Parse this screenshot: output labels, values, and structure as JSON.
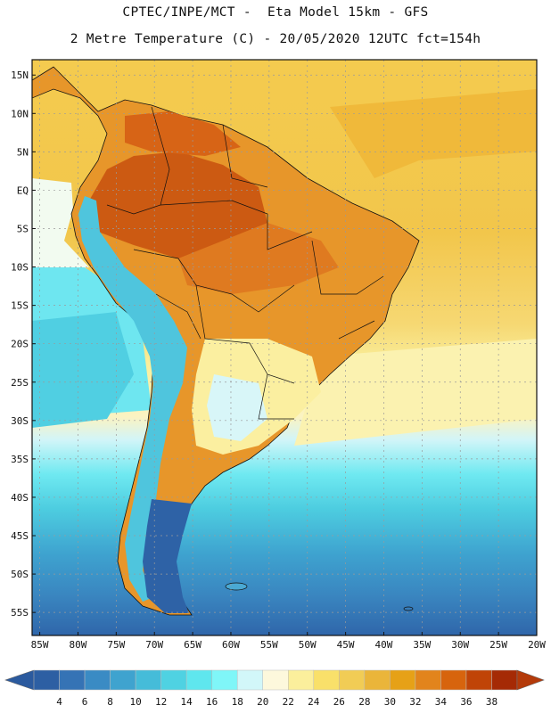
{
  "header": {
    "line1": "CPTEC/INPE/MCT -  Eta Model 15km - GFS",
    "line2": "2 Metre Temperature (C) - 20/05/2020 12UTC fct=154h"
  },
  "lat_ticks": [
    {
      "value": 15,
      "label": "15N"
    },
    {
      "value": 10,
      "label": "10N"
    },
    {
      "value": 5,
      "label": "5N"
    },
    {
      "value": 0,
      "label": "EQ"
    },
    {
      "value": -5,
      "label": "5S"
    },
    {
      "value": -10,
      "label": "10S"
    },
    {
      "value": -15,
      "label": "15S"
    },
    {
      "value": -20,
      "label": "20S"
    },
    {
      "value": -25,
      "label": "25S"
    },
    {
      "value": -30,
      "label": "30S"
    },
    {
      "value": -35,
      "label": "35S"
    },
    {
      "value": -40,
      "label": "40S"
    },
    {
      "value": -45,
      "label": "45S"
    },
    {
      "value": -50,
      "label": "50S"
    },
    {
      "value": -55,
      "label": "55S"
    }
  ],
  "lon_ticks": [
    {
      "value": -85,
      "label": "85W"
    },
    {
      "value": -80,
      "label": "80W"
    },
    {
      "value": -75,
      "label": "75W"
    },
    {
      "value": -70,
      "label": "70W"
    },
    {
      "value": -65,
      "label": "65W"
    },
    {
      "value": -60,
      "label": "60W"
    },
    {
      "value": -55,
      "label": "55W"
    },
    {
      "value": -50,
      "label": "50W"
    },
    {
      "value": -45,
      "label": "45W"
    },
    {
      "value": -40,
      "label": "40W"
    },
    {
      "value": -35,
      "label": "35W"
    },
    {
      "value": -30,
      "label": "30W"
    },
    {
      "value": -25,
      "label": "25W"
    },
    {
      "value": -20,
      "label": "20W"
    }
  ],
  "map_extent": {
    "lon_min": -86,
    "lon_max": -20,
    "lat_min": -58,
    "lat_max": 17
  },
  "colorbar": {
    "labels": [
      "4",
      "6",
      "8",
      "10",
      "12",
      "14",
      "16",
      "18",
      "20",
      "22",
      "24",
      "26",
      "28",
      "30",
      "32",
      "34",
      "36",
      "38"
    ],
    "colors": [
      "#2d5fa3",
      "#3573b5",
      "#3a8bc4",
      "#3fa3cf",
      "#45bcd9",
      "#4fd2e2",
      "#5fe6ee",
      "#7ff6f8",
      "#d2f7f9",
      "#fdf8dc",
      "#fbef9c",
      "#f9e06a",
      "#f1cc55",
      "#eab53a",
      "#e6a117",
      "#e2841c",
      "#d7640d",
      "#c04407",
      "#a52a05"
    ],
    "low_cap_color": "#2b5a9e",
    "high_cap_color": "#b43a0a"
  }
}
